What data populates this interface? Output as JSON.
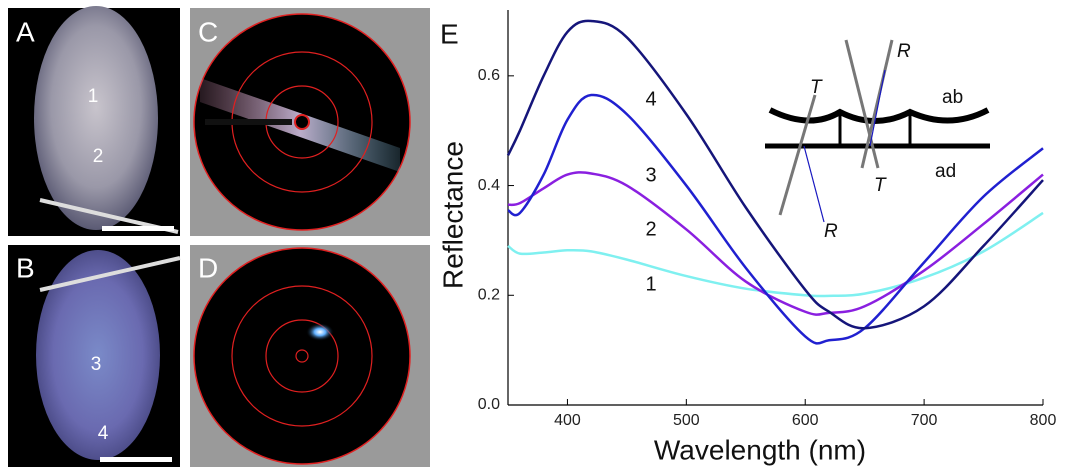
{
  "panels": {
    "a": {
      "label": "A",
      "marks": [
        "1",
        "2"
      ]
    },
    "b": {
      "label": "B",
      "marks": [
        "3",
        "4"
      ]
    },
    "c": {
      "label": "C"
    },
    "d": {
      "label": "D"
    }
  },
  "inset": {
    "labels": [
      "T",
      "R",
      "ab",
      "T",
      "ad",
      "R"
    ]
  },
  "chart_data": {
    "type": "line",
    "panel_label": "E",
    "x_label": "Wavelength (nm)",
    "y_label": "Reflectance",
    "x": [
      350,
      360,
      380,
      400,
      420,
      450,
      500,
      550,
      600,
      620,
      650,
      700,
      750,
      800
    ],
    "series": [
      {
        "name": "1",
        "color": "#7ff0f0",
        "values": [
          0.29,
          0.276,
          0.278,
          0.282,
          0.28,
          0.265,
          0.235,
          0.212,
          0.2,
          0.199,
          0.203,
          0.232,
          0.28,
          0.35
        ]
      },
      {
        "name": "2",
        "color": "#8a1fe0",
        "values": [
          0.365,
          0.368,
          0.395,
          0.42,
          0.422,
          0.4,
          0.32,
          0.225,
          0.17,
          0.168,
          0.18,
          0.245,
          0.33,
          0.42
        ]
      },
      {
        "name": "3",
        "color": "#2020d0",
        "values": [
          0.355,
          0.35,
          0.42,
          0.52,
          0.565,
          0.53,
          0.4,
          0.25,
          0.125,
          0.118,
          0.14,
          0.26,
          0.38,
          0.468
        ]
      },
      {
        "name": "4",
        "color": "#15157a",
        "values": [
          0.455,
          0.5,
          0.6,
          0.68,
          0.7,
          0.67,
          0.53,
          0.36,
          0.21,
          0.17,
          0.14,
          0.18,
          0.29,
          0.41
        ]
      }
    ],
    "xlim": [
      350,
      800
    ],
    "ylim": [
      0,
      0.72
    ],
    "xticks": [
      400,
      500,
      600,
      700,
      800
    ],
    "yticks": [
      {
        "value": 0,
        "label": "0.0"
      },
      0.2,
      0.4,
      0.6
    ]
  }
}
